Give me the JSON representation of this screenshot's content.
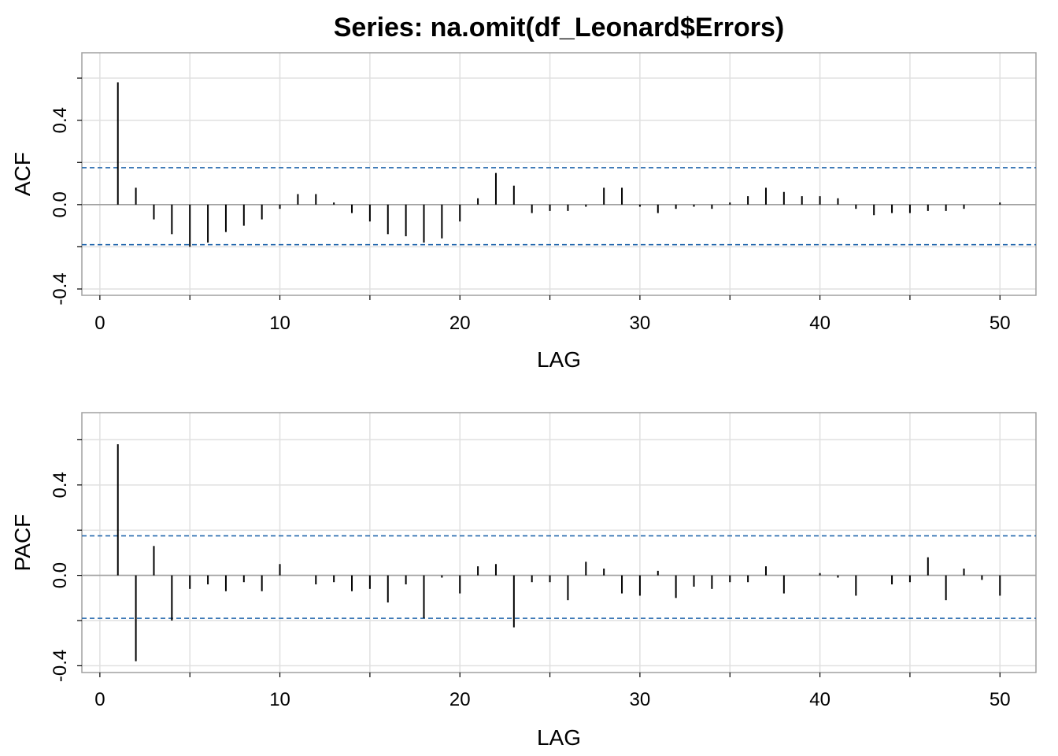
{
  "chart_data": {
    "title": "Series:  na.omit(df_Leonard$Errors)",
    "colors": {
      "bars": "#000000",
      "bounds": "#2166ac",
      "grid": "#e0e0e0",
      "frame": "#a0a0a0",
      "zero_line": "#a0a0a0"
    },
    "panels": [
      {
        "type": "bar",
        "ylabel": "ACF",
        "xlabel": "LAG",
        "xlim": [
          -1,
          52
        ],
        "ylim": [
          -0.43,
          0.72
        ],
        "x_ticks": [
          0,
          10,
          20,
          30,
          40,
          50
        ],
        "y_ticks": [
          -0.4,
          0.0,
          0.4
        ],
        "y_tick_labels": [
          "-0.4",
          "0.0",
          "0.4"
        ],
        "conf_bounds": [
          0.175,
          -0.19
        ],
        "lags": [
          1,
          2,
          3,
          4,
          5,
          6,
          7,
          8,
          9,
          10,
          11,
          12,
          13,
          14,
          15,
          16,
          17,
          18,
          19,
          20,
          21,
          22,
          23,
          24,
          25,
          26,
          27,
          28,
          29,
          30,
          31,
          32,
          33,
          34,
          35,
          36,
          37,
          38,
          39,
          40,
          41,
          42,
          43,
          44,
          45,
          46,
          47,
          48,
          49,
          50
        ],
        "values": [
          0.58,
          0.08,
          -0.07,
          -0.14,
          -0.2,
          -0.18,
          -0.13,
          -0.1,
          -0.07,
          -0.02,
          0.05,
          0.05,
          0.01,
          -0.04,
          -0.08,
          -0.14,
          -0.15,
          -0.18,
          -0.16,
          -0.08,
          0.03,
          0.15,
          0.09,
          -0.04,
          -0.03,
          -0.03,
          -0.01,
          0.08,
          0.08,
          -0.01,
          -0.04,
          -0.02,
          -0.01,
          -0.02,
          0.01,
          0.04,
          0.08,
          0.06,
          0.04,
          0.04,
          0.03,
          -0.02,
          -0.05,
          -0.04,
          -0.04,
          -0.03,
          -0.03,
          -0.02,
          0.0,
          0.01
        ]
      },
      {
        "type": "bar",
        "ylabel": "PACF",
        "xlabel": "LAG",
        "xlim": [
          -1,
          52
        ],
        "ylim": [
          -0.43,
          0.72
        ],
        "x_ticks": [
          0,
          10,
          20,
          30,
          40,
          50
        ],
        "y_ticks": [
          -0.4,
          0.0,
          0.4
        ],
        "y_tick_labels": [
          "-0.4",
          "0.0",
          "0.4"
        ],
        "conf_bounds": [
          0.175,
          -0.19
        ],
        "lags": [
          1,
          2,
          3,
          4,
          5,
          6,
          7,
          8,
          9,
          10,
          11,
          12,
          13,
          14,
          15,
          16,
          17,
          18,
          19,
          20,
          21,
          22,
          23,
          24,
          25,
          26,
          27,
          28,
          29,
          30,
          31,
          32,
          33,
          34,
          35,
          36,
          37,
          38,
          39,
          40,
          41,
          42,
          43,
          44,
          45,
          46,
          47,
          48,
          49,
          50
        ],
        "values": [
          0.58,
          -0.38,
          0.13,
          -0.2,
          -0.06,
          -0.04,
          -0.07,
          -0.03,
          -0.07,
          0.05,
          0.0,
          -0.04,
          -0.03,
          -0.07,
          -0.06,
          -0.12,
          -0.04,
          -0.19,
          -0.01,
          -0.08,
          0.04,
          0.05,
          -0.23,
          -0.03,
          -0.03,
          -0.11,
          0.06,
          0.03,
          -0.08,
          -0.09,
          0.02,
          -0.1,
          -0.05,
          -0.06,
          -0.03,
          -0.03,
          0.04,
          -0.08,
          0.0,
          0.01,
          -0.01,
          -0.09,
          0.0,
          -0.04,
          -0.03,
          0.08,
          -0.11,
          0.03,
          -0.02,
          -0.09
        ]
      }
    ]
  }
}
